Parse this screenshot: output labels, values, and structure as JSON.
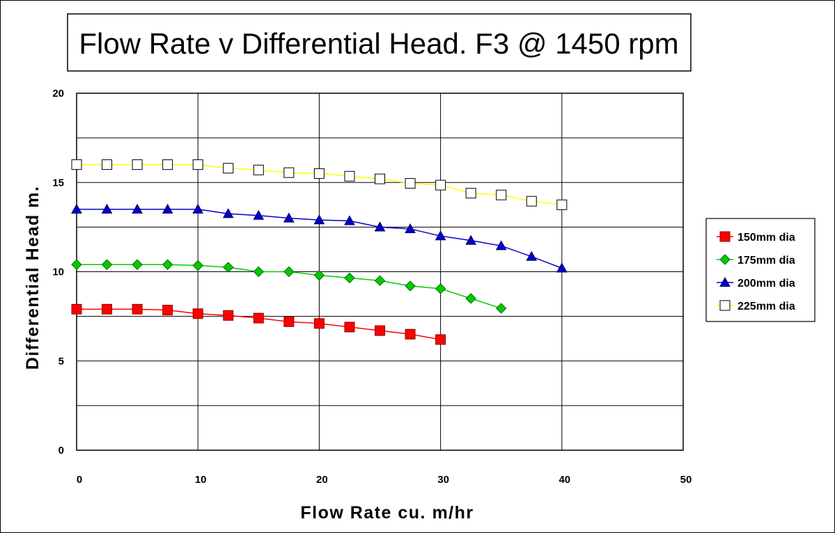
{
  "chart_data": {
    "type": "line",
    "title": "Flow Rate v Differential Head. F3 @ 1450 rpm",
    "xlabel": "Flow Rate cu. m/hr",
    "ylabel": "Differential Head m.",
    "xlim": [
      0,
      50
    ],
    "ylim": [
      0,
      20
    ],
    "x_ticks": [
      0,
      10,
      20,
      30,
      40,
      50
    ],
    "y_ticks": [
      0,
      5,
      10,
      15,
      20
    ],
    "x_tick_labels": [
      "0",
      "10",
      "20",
      "30",
      "40",
      "50"
    ],
    "y_tick_labels": [
      "0",
      "5",
      "10",
      "15",
      "20"
    ],
    "grid": true,
    "legend_position": "right",
    "series": [
      {
        "name": "150mm dia",
        "color": "#ff0000",
        "marker": "square",
        "x": [
          0,
          2.5,
          5,
          7.5,
          10,
          12.5,
          15,
          17.5,
          20,
          22.5,
          25,
          27.5,
          30
        ],
        "y": [
          7.9,
          7.9,
          7.9,
          7.85,
          7.65,
          7.55,
          7.4,
          7.2,
          7.1,
          6.9,
          6.7,
          6.5,
          6.2
        ]
      },
      {
        "name": "175mm dia",
        "color": "#00cc00",
        "marker": "diamond",
        "x": [
          0,
          2.5,
          5,
          7.5,
          10,
          12.5,
          15,
          17.5,
          20,
          22.5,
          25,
          27.5,
          30,
          32.5,
          35
        ],
        "y": [
          10.4,
          10.4,
          10.4,
          10.4,
          10.35,
          10.25,
          10.0,
          10.0,
          9.8,
          9.65,
          9.5,
          9.2,
          9.05,
          8.5,
          7.95
        ]
      },
      {
        "name": "200mm dia",
        "color": "#0000cc",
        "marker": "triangle",
        "x": [
          0,
          2.5,
          5,
          7.5,
          10,
          12.5,
          15,
          17.5,
          20,
          22.5,
          25,
          27.5,
          30,
          32.5,
          35,
          37.5,
          40
        ],
        "y": [
          13.5,
          13.5,
          13.5,
          13.5,
          13.5,
          13.25,
          13.15,
          13.0,
          12.9,
          12.85,
          12.5,
          12.4,
          12.0,
          11.75,
          11.45,
          10.85,
          10.2
        ]
      },
      {
        "name": "225mm dia",
        "color": "#ffff00",
        "marker": "open-square",
        "x": [
          0,
          2.5,
          5,
          7.5,
          10,
          12.5,
          15,
          17.5,
          20,
          22.5,
          25,
          27.5,
          30,
          32.5,
          35,
          37.5,
          40
        ],
        "y": [
          16.0,
          16.0,
          16.0,
          16.0,
          16.0,
          15.8,
          15.7,
          15.55,
          15.5,
          15.35,
          15.2,
          14.95,
          14.85,
          14.4,
          14.3,
          13.95,
          13.75
        ]
      }
    ]
  }
}
